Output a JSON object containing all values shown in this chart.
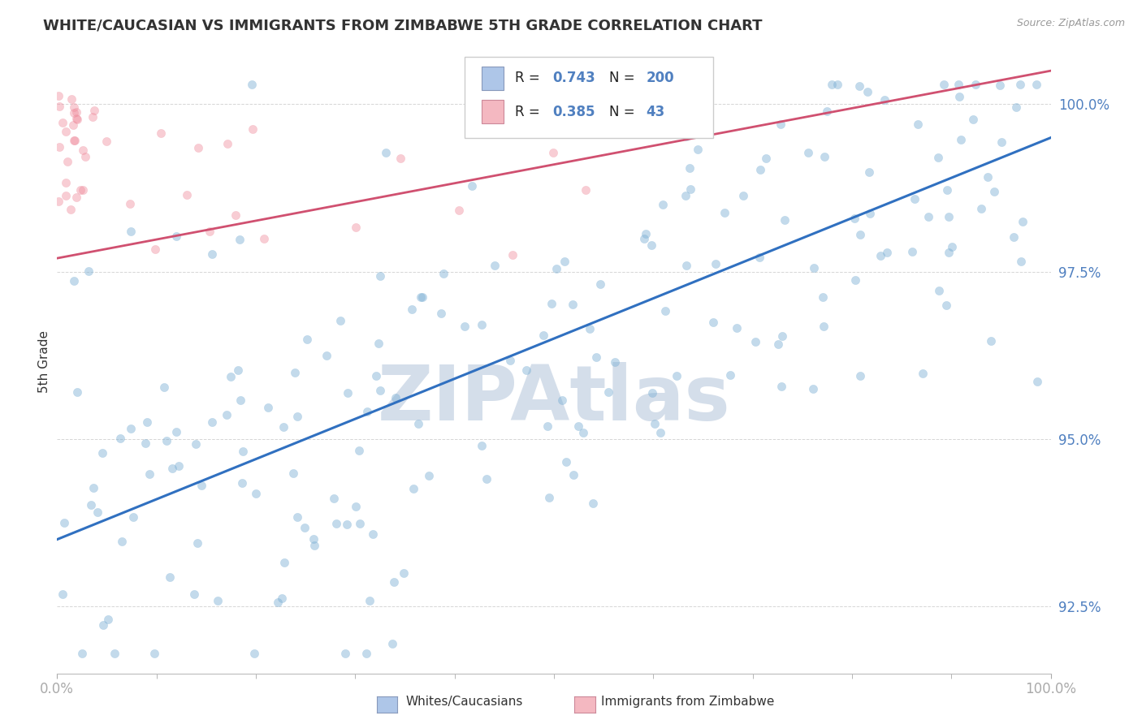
{
  "title": "WHITE/CAUCASIAN VS IMMIGRANTS FROM ZIMBABWE 5TH GRADE CORRELATION CHART",
  "source": "Source: ZipAtlas.com",
  "ylabel": "5th Grade",
  "y_ticks": [
    92.5,
    95.0,
    97.5,
    100.0
  ],
  "y_tick_labels": [
    "92.5%",
    "95.0%",
    "97.5%",
    "100.0%"
  ],
  "x_min": 0.0,
  "x_max": 100.0,
  "y_min": 91.5,
  "y_max": 100.8,
  "legend_entries": [
    {
      "label": "Whites/Caucasians",
      "color": "#aec6e8",
      "R": 0.743,
      "N": 200
    },
    {
      "label": "Immigrants from Zimbabwe",
      "color": "#f4b8c1",
      "R": 0.385,
      "N": 43
    }
  ],
  "blue_dot_color": "#7bafd4",
  "pink_dot_color": "#f090a0",
  "blue_line_color": "#3070c0",
  "pink_line_color": "#d05070",
  "dot_size": 55,
  "dot_alpha": 0.45,
  "watermark": "ZIPAtlas",
  "watermark_color": "#b8c8dc",
  "watermark_fontsize": 68,
  "title_color": "#333333",
  "title_fontsize": 13,
  "axis_color": "#5080c0",
  "grid_color": "#cccccc",
  "blue_scatter_seed": 42,
  "pink_scatter_seed": 17
}
